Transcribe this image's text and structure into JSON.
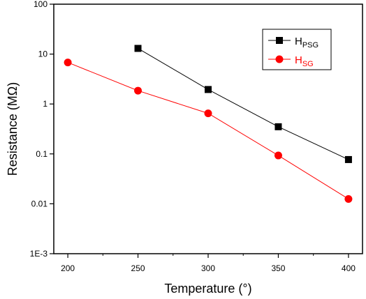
{
  "chart_data": {
    "type": "line",
    "xlabel": "Temperature (°)",
    "ylabel": "Resistance  (MΩ)",
    "xlim": [
      190,
      410
    ],
    "ylim": [
      0.001,
      100
    ],
    "yscale": "log",
    "x_ticks": [
      200,
      250,
      300,
      350,
      400
    ],
    "x_tick_labels": [
      "200",
      "250",
      "300",
      "350",
      "400"
    ],
    "y_ticks": [
      0.001,
      0.01,
      0.1,
      1,
      10,
      100
    ],
    "y_tick_labels": [
      "1E-3",
      "0.01",
      "0.1",
      "1",
      "10",
      "100"
    ],
    "grid": false,
    "legend_position": "top-right",
    "series": [
      {
        "name": "H",
        "subscript": "PSG",
        "color": "#000000",
        "marker": "square",
        "x": [
          250,
          300,
          350,
          400
        ],
        "values": [
          13,
          1.95,
          0.35,
          0.077
        ]
      },
      {
        "name": "H",
        "subscript": "SG",
        "color": "#ff0000",
        "marker": "circle",
        "x": [
          200,
          250,
          300,
          350,
          400
        ],
        "values": [
          6.8,
          1.85,
          0.65,
          0.093,
          0.0125
        ]
      }
    ]
  }
}
